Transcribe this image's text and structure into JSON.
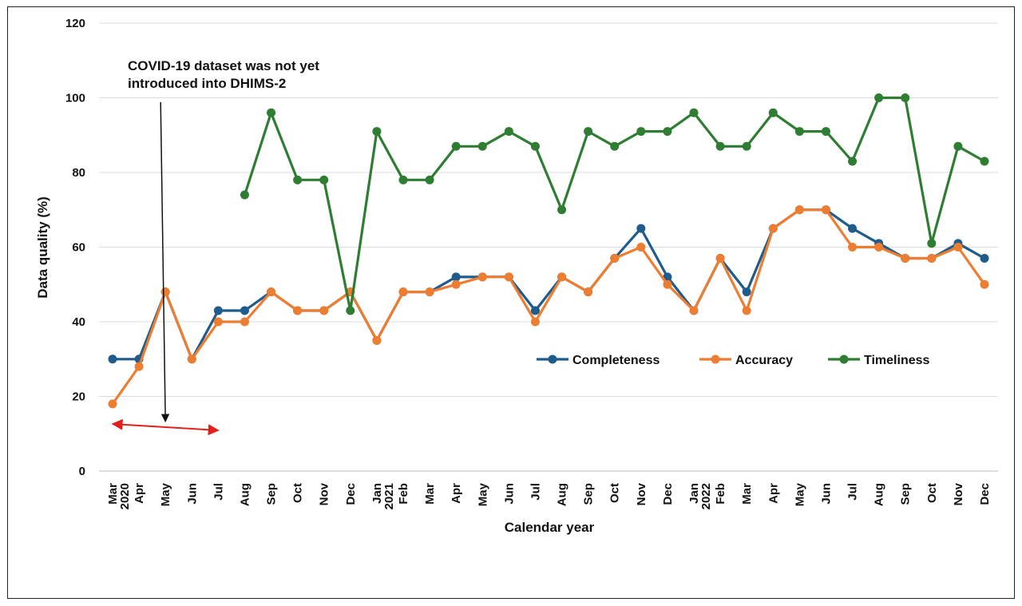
{
  "chart_data": {
    "type": "line",
    "xlabel": "Calendar year",
    "ylabel": "Data quality (%)",
    "ylim": [
      0,
      120
    ],
    "yticks": [
      0,
      20,
      40,
      60,
      80,
      100,
      120
    ],
    "grid": true,
    "legend_position": "center-right",
    "categories": [
      "Mar",
      "Apr",
      "May",
      "Jun",
      "Jul",
      "Aug",
      "Sep",
      "Oct",
      "Nov",
      "Dec",
      "Jan",
      "Feb",
      "Mar",
      "Apr",
      "May",
      "Jun",
      "Jul",
      "Aug",
      "Sep",
      "Oct",
      "Nov",
      "Dec",
      "Jan",
      "Feb",
      "Mar",
      "Apr",
      "May",
      "Jun",
      "Jul",
      "Aug",
      "Sep",
      "Oct",
      "Nov",
      "Dec"
    ],
    "year_labels": [
      {
        "index": 0,
        "label": "2020"
      },
      {
        "index": 10,
        "label": "2021"
      },
      {
        "index": 22,
        "label": "2022"
      }
    ],
    "series": [
      {
        "name": "Completeness",
        "color": "#1f5c8b",
        "values": [
          30,
          30,
          48,
          30,
          43,
          43,
          48,
          43,
          43,
          48,
          35,
          48,
          48,
          52,
          52,
          52,
          43,
          52,
          48,
          57,
          65,
          52,
          43,
          57,
          48,
          65,
          70,
          70,
          65,
          61,
          57,
          57,
          61,
          57
        ]
      },
      {
        "name": "Accuracy",
        "color": "#ed7d31",
        "values": [
          18,
          28,
          48,
          30,
          40,
          40,
          48,
          43,
          43,
          48,
          35,
          48,
          48,
          50,
          52,
          52,
          40,
          52,
          48,
          57,
          60,
          50,
          43,
          57,
          43,
          65,
          70,
          70,
          60,
          60,
          57,
          57,
          60,
          50
        ]
      },
      {
        "name": "Timeliness",
        "color": "#2e7d32",
        "values": [
          null,
          null,
          null,
          null,
          null,
          74,
          96,
          78,
          78,
          43,
          91,
          78,
          78,
          87,
          87,
          91,
          87,
          70,
          91,
          87,
          91,
          91,
          96,
          87,
          87,
          96,
          91,
          91,
          83,
          100,
          100,
          61,
          87,
          83
        ]
      }
    ],
    "annotations": [
      {
        "lines": [
          "COVID-19 dataset was not yet",
          "introduced into DHIMS-2"
        ],
        "arrow_to_category": 2,
        "range_categories": [
          0,
          4
        ],
        "range_color": "#e0201b"
      }
    ]
  }
}
